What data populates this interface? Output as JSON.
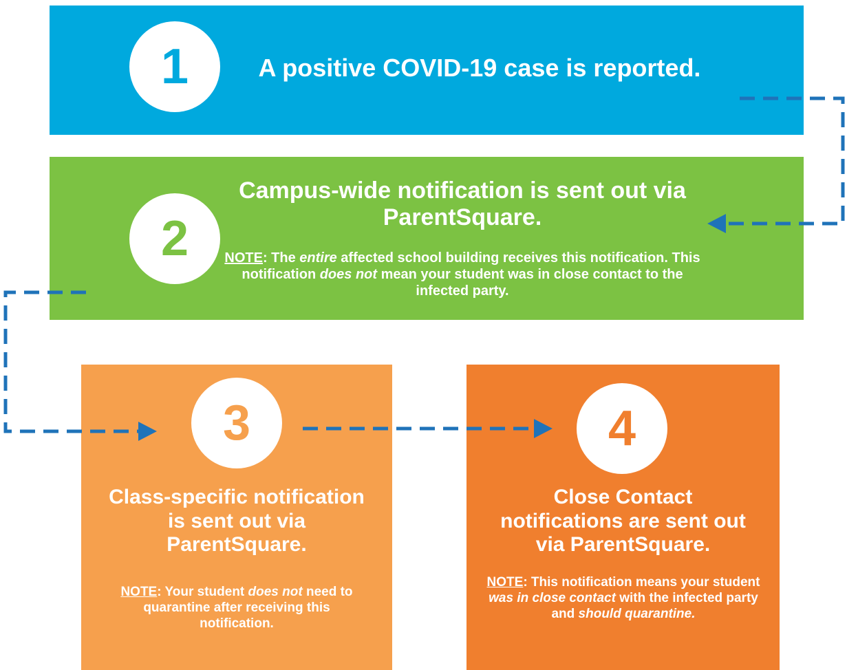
{
  "steps": [
    {
      "number": "1",
      "title": "A positive COVID-19 case is reported."
    },
    {
      "number": "2",
      "title": "Campus-wide notification is sent out via ParentSquare.",
      "note": [
        {
          "text": "NOTE",
          "u": true
        },
        {
          "text": ": The "
        },
        {
          "text": "entire",
          "i": true
        },
        {
          "text": " affected school building receives this notification. This notification "
        },
        {
          "text": "does not",
          "i": true
        },
        {
          "text": " mean your student was in close contact to the infected party."
        }
      ]
    },
    {
      "number": "3",
      "title": "Class-specific notification is sent out via ParentSquare.",
      "note": [
        {
          "text": "NOTE",
          "u": true
        },
        {
          "text": ": Your student "
        },
        {
          "text": "does not",
          "i": true
        },
        {
          "text": " need to quarantine after receiving this notification."
        }
      ]
    },
    {
      "number": "4",
      "title": "Close Contact notifications are sent out via ParentSquare.",
      "note": [
        {
          "text": "NOTE",
          "u": true
        },
        {
          "text": ": This notification means your student "
        },
        {
          "text": "was in close contact",
          "i": true
        },
        {
          "text": " with the infected party and "
        },
        {
          "text": "should quarantine.",
          "i": true
        }
      ]
    }
  ]
}
